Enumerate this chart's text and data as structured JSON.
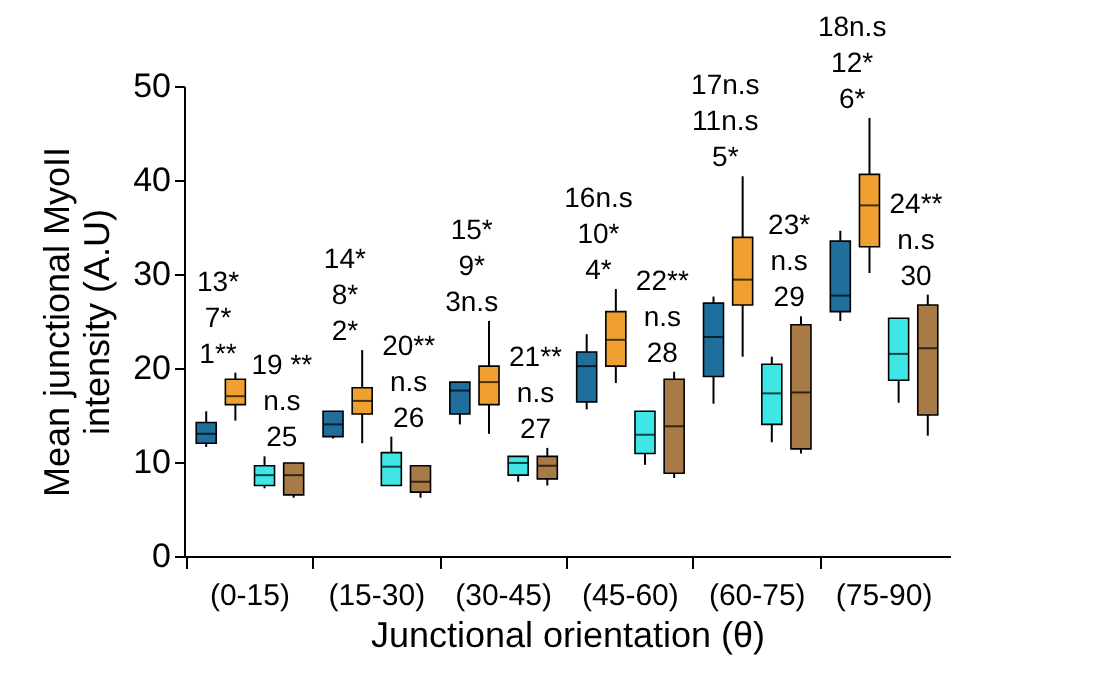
{
  "chart_data": {
    "type": "box",
    "categories": [
      "(0-15)",
      "(15-30)",
      "(30-45)",
      "(45-60)",
      "(60-75)",
      "(75-90)"
    ],
    "xlabel": "Junctional orientation (θ)",
    "ylabel": "Mean junctional MyoII intensity (A.U)",
    "ylim": [
      0,
      50
    ],
    "yticks": [
      0,
      10,
      20,
      30,
      40,
      50
    ],
    "grid": false,
    "legend": false,
    "series": [
      {
        "color": "#1f6e9c",
        "boxes": [
          {
            "low": 11.6,
            "q1": 12.0,
            "median": 13.0,
            "q3": 14.2,
            "high": 15.4
          },
          {
            "low": 12.5,
            "q1": 12.7,
            "median": 14.0,
            "q3": 15.4,
            "high": 15.4
          },
          {
            "low": 14.0,
            "q1": 15.1,
            "median": 17.6,
            "q3": 18.5,
            "high": 18.5
          },
          {
            "low": 15.6,
            "q1": 16.4,
            "median": 20.2,
            "q3": 21.7,
            "high": 23.6
          },
          {
            "low": 16.2,
            "q1": 19.1,
            "median": 23.3,
            "q3": 26.9,
            "high": 27.6
          },
          {
            "low": 25.0,
            "q1": 26.0,
            "median": 27.7,
            "q3": 33.5,
            "high": 34.6
          }
        ]
      },
      {
        "color": "#f0a030",
        "boxes": [
          {
            "low": 14.4,
            "q1": 16.1,
            "median": 17.0,
            "q3": 18.8,
            "high": 19.5
          },
          {
            "low": 12.0,
            "q1": 15.1,
            "median": 16.5,
            "q3": 17.9,
            "high": 21.9
          },
          {
            "low": 13.0,
            "q1": 16.1,
            "median": 18.5,
            "q3": 20.2,
            "high": 25.0
          },
          {
            "low": 18.4,
            "q1": 20.2,
            "median": 23.0,
            "q3": 26.0,
            "high": 28.4
          },
          {
            "low": 21.2,
            "q1": 26.7,
            "median": 29.4,
            "q3": 33.9,
            "high": 40.4
          },
          {
            "low": 30.1,
            "q1": 32.9,
            "median": 37.3,
            "q3": 40.6,
            "high": 46.6
          }
        ]
      },
      {
        "color": "#3ee6e6",
        "boxes": [
          {
            "low": 7.2,
            "q1": 7.5,
            "median": 8.6,
            "q3": 9.6,
            "high": 10.6
          },
          {
            "low": 7.5,
            "q1": 7.5,
            "median": 9.5,
            "q3": 11.0,
            "high": 12.7
          },
          {
            "low": 7.9,
            "q1": 8.6,
            "median": 9.9,
            "q3": 10.6,
            "high": 10.6
          },
          {
            "low": 9.7,
            "q1": 10.9,
            "median": 12.9,
            "q3": 15.4,
            "high": 15.4
          },
          {
            "low": 12.1,
            "q1": 14.0,
            "median": 17.3,
            "q3": 20.4,
            "high": 21.2
          },
          {
            "low": 16.3,
            "q1": 18.7,
            "median": 21.5,
            "q3": 25.3,
            "high": 25.3
          }
        ]
      },
      {
        "color": "#a87a45",
        "boxes": [
          {
            "low": 6.2,
            "q1": 6.5,
            "median": 8.6,
            "q3": 9.9,
            "high": 9.9
          },
          {
            "low": 6.2,
            "q1": 6.8,
            "median": 7.9,
            "q3": 9.6,
            "high": 9.6
          },
          {
            "low": 7.5,
            "q1": 8.2,
            "median": 9.6,
            "q3": 10.6,
            "high": 11.5
          },
          {
            "low": 8.3,
            "q1": 8.8,
            "median": 13.8,
            "q3": 18.8,
            "high": 19.6
          },
          {
            "low": 10.9,
            "q1": 11.4,
            "median": 17.4,
            "q3": 24.6,
            "high": 25.5
          },
          {
            "low": 12.8,
            "q1": 15.0,
            "median": 22.1,
            "q3": 26.7,
            "high": 27.8
          }
        ]
      }
    ],
    "annotations": [
      "13*",
      "7*",
      "1**",
      "19 **",
      "n.s",
      "25",
      "14*",
      "8*",
      "2*",
      "20**",
      "n.s",
      "26",
      "15*",
      "9*",
      "3n.s",
      "21**",
      "n.s",
      "27",
      "16n.s",
      "10*",
      "4*",
      "22**",
      "n.s",
      "28",
      "17n.s",
      "11n.s",
      "5*",
      "23*",
      "n.s",
      "29",
      "18n.s",
      "12*",
      "6*",
      "24**",
      "n.s",
      "30"
    ]
  }
}
